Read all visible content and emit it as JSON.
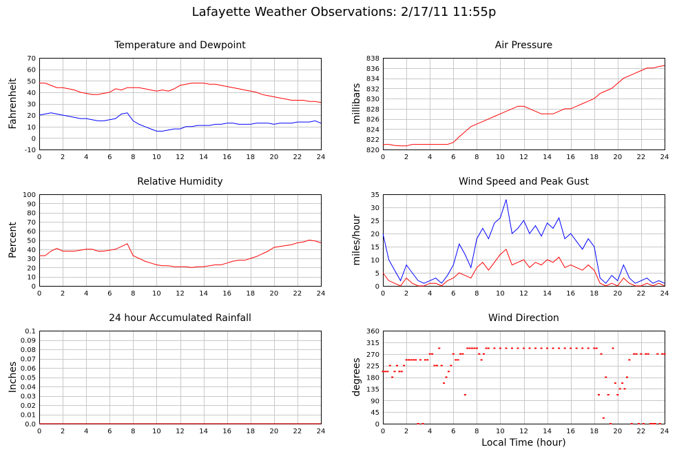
{
  "page": {
    "title": "Lafayette Weather Observations: 2/17/11 11:55p",
    "xlabel": "Local Time (hour)"
  },
  "chart_data": [
    {
      "id": "temp",
      "type": "line",
      "title": "Temperature and Dewpoint",
      "xlabel": "",
      "ylabel": "Fahrenheit",
      "xlim": [
        0,
        24
      ],
      "ylim": [
        -10,
        70
      ],
      "xticks": [
        0,
        2,
        4,
        6,
        8,
        10,
        12,
        14,
        16,
        18,
        20,
        22,
        24
      ],
      "yticks": [
        -10,
        0,
        10,
        20,
        30,
        40,
        50,
        60,
        70
      ],
      "grid": true,
      "x": [
        0,
        0.5,
        1,
        1.5,
        2,
        2.5,
        3,
        3.5,
        4,
        4.5,
        5,
        5.5,
        6,
        6.5,
        7,
        7.5,
        8,
        8.5,
        9,
        9.5,
        10,
        10.5,
        11,
        11.5,
        12,
        12.5,
        13,
        13.5,
        14,
        14.5,
        15,
        15.5,
        16,
        16.5,
        17,
        17.5,
        18,
        18.5,
        19,
        19.5,
        20,
        20.5,
        21,
        21.5,
        22,
        22.5,
        23,
        23.5,
        24
      ],
      "series": [
        {
          "color": "#ff0000",
          "values": [
            48,
            48,
            46,
            44,
            44,
            43,
            42,
            40,
            39,
            38,
            38,
            39,
            40,
            43,
            42,
            44,
            44,
            44,
            43,
            42,
            41,
            42,
            41,
            43,
            46,
            47,
            48,
            48,
            48,
            47,
            47,
            46,
            45,
            44,
            43,
            42,
            41,
            40,
            38,
            37,
            36,
            35,
            34,
            33,
            33,
            33,
            32,
            32,
            31
          ]
        },
        {
          "color": "#0000ff",
          "values": [
            20,
            21,
            22,
            21,
            20,
            19,
            18,
            17,
            17,
            16,
            15,
            15,
            16,
            17,
            21,
            22,
            15,
            12,
            10,
            8,
            6,
            6,
            7,
            8,
            8,
            10,
            10,
            11,
            11,
            11,
            12,
            12,
            13,
            13,
            12,
            12,
            12,
            13,
            13,
            13,
            12,
            13,
            13,
            13,
            14,
            14,
            14,
            15,
            13
          ]
        }
      ]
    },
    {
      "id": "pressure",
      "type": "line",
      "title": "Air Pressure",
      "xlabel": "",
      "ylabel": "millibars",
      "xlim": [
        0,
        24
      ],
      "ylim": [
        820,
        838
      ],
      "xticks": [
        0,
        2,
        4,
        6,
        8,
        10,
        12,
        14,
        16,
        18,
        20,
        22,
        24
      ],
      "yticks": [
        820,
        822,
        824,
        826,
        828,
        830,
        832,
        834,
        836,
        838
      ],
      "grid": true,
      "x": [
        0,
        0.5,
        1,
        1.5,
        2,
        2.5,
        3,
        3.5,
        4,
        4.5,
        5,
        5.5,
        6,
        6.5,
        7,
        7.5,
        8,
        8.5,
        9,
        9.5,
        10,
        10.5,
        11,
        11.5,
        12,
        12.5,
        13,
        13.5,
        14,
        14.5,
        15,
        15.5,
        16,
        16.5,
        17,
        17.5,
        18,
        18.5,
        19,
        19.5,
        20,
        20.5,
        21,
        21.5,
        22,
        22.5,
        23,
        23.5,
        24
      ],
      "series": [
        {
          "color": "#ff0000",
          "values": [
            821,
            821,
            820.8,
            820.7,
            820.7,
            821,
            821,
            821,
            821,
            821,
            821,
            821,
            821.4,
            822.5,
            823.5,
            824.5,
            825,
            825.5,
            826,
            826.5,
            827,
            827.5,
            828,
            828.5,
            828.5,
            828,
            827.5,
            827,
            827,
            827,
            827.5,
            828,
            828,
            828.5,
            829,
            829.5,
            830,
            831,
            831.5,
            832,
            833,
            834,
            834.5,
            835,
            835.5,
            836,
            836,
            836.3,
            836.5
          ]
        }
      ]
    },
    {
      "id": "humidity",
      "type": "line",
      "title": "Relative Humidity",
      "xlabel": "",
      "ylabel": "Percent",
      "xlim": [
        0,
        24
      ],
      "ylim": [
        0,
        100
      ],
      "xticks": [
        0,
        2,
        4,
        6,
        8,
        10,
        12,
        14,
        16,
        18,
        20,
        22,
        24
      ],
      "yticks": [
        0,
        10,
        20,
        30,
        40,
        50,
        60,
        70,
        80,
        90,
        100
      ],
      "grid": true,
      "x": [
        0,
        0.5,
        1,
        1.5,
        2,
        2.5,
        3,
        3.5,
        4,
        4.5,
        5,
        5.5,
        6,
        6.5,
        7,
        7.5,
        8,
        8.5,
        9,
        9.5,
        10,
        10.5,
        11,
        11.5,
        12,
        12.5,
        13,
        13.5,
        14,
        14.5,
        15,
        15.5,
        16,
        16.5,
        17,
        17.5,
        18,
        18.5,
        19,
        19.5,
        20,
        20.5,
        21,
        21.5,
        22,
        22.5,
        23,
        23.5,
        24
      ],
      "series": [
        {
          "color": "#ff0000",
          "values": [
            33,
            33,
            38,
            41,
            38,
            38,
            38,
            39,
            40,
            40,
            38,
            38,
            39,
            40,
            43,
            46,
            33,
            30,
            27,
            25,
            23,
            22,
            22,
            21,
            21,
            21,
            20,
            21,
            21,
            22,
            23,
            23,
            25,
            27,
            28,
            28,
            30,
            32,
            35,
            38,
            42,
            43,
            44,
            45,
            47,
            48,
            50,
            49,
            47
          ]
        }
      ]
    },
    {
      "id": "wind",
      "type": "line",
      "title": "Wind Speed and Peak Gust",
      "xlabel": "",
      "ylabel": "miles/hour",
      "xlim": [
        0,
        24
      ],
      "ylim": [
        0,
        35
      ],
      "xticks": [
        0,
        2,
        4,
        6,
        8,
        10,
        12,
        14,
        16,
        18,
        20,
        22,
        24
      ],
      "yticks": [
        0,
        5,
        10,
        15,
        20,
        25,
        30,
        35
      ],
      "grid": true,
      "x": [
        0,
        0.5,
        1,
        1.5,
        2,
        2.5,
        3,
        3.5,
        4,
        4.5,
        5,
        5.5,
        6,
        6.5,
        7,
        7.5,
        8,
        8.5,
        9,
        9.5,
        10,
        10.5,
        11,
        11.5,
        12,
        12.5,
        13,
        13.5,
        14,
        14.5,
        15,
        15.5,
        16,
        16.5,
        17,
        17.5,
        18,
        18.5,
        19,
        19.5,
        20,
        20.5,
        21,
        21.5,
        22,
        22.5,
        23,
        23.5,
        24
      ],
      "series": [
        {
          "color": "#0000ff",
          "values": [
            20,
            10,
            6,
            2,
            8,
            5,
            2,
            1,
            2,
            3,
            1,
            4,
            8,
            16,
            12,
            7,
            18,
            22,
            18,
            24,
            26,
            33,
            20,
            22,
            25,
            20,
            23,
            19,
            24,
            22,
            26,
            18,
            20,
            17,
            14,
            18,
            15,
            3,
            1,
            4,
            2,
            8,
            3,
            1,
            2,
            3,
            1,
            2,
            1
          ]
        },
        {
          "color": "#ff0000",
          "values": [
            5,
            2,
            1,
            0,
            3,
            1,
            0,
            0,
            1,
            1,
            0,
            2,
            3,
            5,
            4,
            3,
            7,
            9,
            6,
            9,
            12,
            14,
            8,
            9,
            10,
            7,
            9,
            8,
            10,
            9,
            11,
            7,
            8,
            7,
            6,
            8,
            6,
            1,
            0,
            1,
            0,
            3,
            1,
            0,
            0,
            1,
            0,
            1,
            0
          ]
        }
      ]
    },
    {
      "id": "rain",
      "type": "line",
      "title": "24 hour Accumulated Rainfall",
      "xlabel": "",
      "ylabel": "Inches",
      "xlim": [
        0,
        24
      ],
      "ylim": [
        0,
        0.1
      ],
      "xticks": [
        0,
        2,
        4,
        6,
        8,
        10,
        12,
        14,
        16,
        18,
        20,
        22,
        24
      ],
      "yticks": [
        0.0,
        0.01,
        0.02,
        0.03,
        0.04,
        0.05,
        0.06,
        0.07,
        0.08,
        0.09,
        0.1
      ],
      "yticklabels": [
        "0.0",
        "0.01",
        "0.02",
        "0.03",
        "0.04",
        "0.05",
        "0.06",
        "0.07",
        "0.08",
        "0.09",
        "0.1"
      ],
      "grid": true,
      "x": [
        0,
        24
      ],
      "series": [
        {
          "color": "#ff0000",
          "values": [
            0,
            0
          ]
        }
      ]
    },
    {
      "id": "direction",
      "type": "scatter",
      "title": "Wind Direction",
      "xlabel": "",
      "ylabel": "degrees",
      "xlim": [
        0,
        24
      ],
      "ylim": [
        0,
        360
      ],
      "xticks": [
        0,
        2,
        4,
        6,
        8,
        10,
        12,
        14,
        16,
        18,
        20,
        22,
        24
      ],
      "yticks": [
        0,
        45,
        90,
        135,
        180,
        225,
        270,
        315,
        360
      ],
      "grid": true,
      "series": [
        {
          "color": "#ff0000",
          "points": [
            [
              0,
              202
            ],
            [
              0.2,
              202
            ],
            [
              0.4,
              202
            ],
            [
              0.6,
              225
            ],
            [
              0.8,
              180
            ],
            [
              1,
              202
            ],
            [
              1.2,
              225
            ],
            [
              1.4,
              202
            ],
            [
              1.6,
              202
            ],
            [
              1.8,
              225
            ],
            [
              2,
              247
            ],
            [
              2.2,
              247
            ],
            [
              2.4,
              247
            ],
            [
              2.6,
              247
            ],
            [
              2.8,
              247
            ],
            [
              3,
              0
            ],
            [
              3.2,
              247
            ],
            [
              3.4,
              0
            ],
            [
              3.6,
              247
            ],
            [
              3.8,
              247
            ],
            [
              4,
              270
            ],
            [
              4.2,
              270
            ],
            [
              4.4,
              225
            ],
            [
              4.6,
              225
            ],
            [
              4.8,
              292
            ],
            [
              5,
              225
            ],
            [
              5.2,
              157
            ],
            [
              5.4,
              180
            ],
            [
              5.6,
              202
            ],
            [
              5.8,
              225
            ],
            [
              6,
              270
            ],
            [
              6.2,
              247
            ],
            [
              6.4,
              247
            ],
            [
              6.6,
              270
            ],
            [
              6.8,
              270
            ],
            [
              7,
              112
            ],
            [
              7.2,
              292
            ],
            [
              7.4,
              292
            ],
            [
              7.6,
              292
            ],
            [
              7.8,
              292
            ],
            [
              8,
              292
            ],
            [
              8.2,
              270
            ],
            [
              8.4,
              247
            ],
            [
              8.6,
              270
            ],
            [
              8.8,
              292
            ],
            [
              9,
              292
            ],
            [
              9.5,
              292
            ],
            [
              10,
              292
            ],
            [
              10.5,
              292
            ],
            [
              11,
              292
            ],
            [
              11.5,
              292
            ],
            [
              12,
              292
            ],
            [
              12.5,
              292
            ],
            [
              13,
              292
            ],
            [
              13.5,
              292
            ],
            [
              14,
              292
            ],
            [
              14.5,
              292
            ],
            [
              15,
              292
            ],
            [
              15.5,
              292
            ],
            [
              16,
              292
            ],
            [
              16.5,
              292
            ],
            [
              17,
              292
            ],
            [
              17.5,
              292
            ],
            [
              18,
              292
            ],
            [
              18.2,
              292
            ],
            [
              18.4,
              112
            ],
            [
              18.6,
              270
            ],
            [
              18.8,
              22
            ],
            [
              19,
              180
            ],
            [
              19.2,
              112
            ],
            [
              19.4,
              0
            ],
            [
              19.6,
              292
            ],
            [
              19.8,
              157
            ],
            [
              20,
              112
            ],
            [
              20.2,
              135
            ],
            [
              20.4,
              157
            ],
            [
              20.6,
              135
            ],
            [
              20.8,
              180
            ],
            [
              21,
              247
            ],
            [
              21.2,
              0
            ],
            [
              21.4,
              270
            ],
            [
              21.6,
              270
            ],
            [
              21.8,
              0
            ],
            [
              22,
              270
            ],
            [
              22.2,
              0
            ],
            [
              22.4,
              270
            ],
            [
              22.6,
              270
            ],
            [
              22.8,
              0
            ],
            [
              23,
              0
            ],
            [
              23.2,
              0
            ],
            [
              23.4,
              270
            ],
            [
              23.6,
              0
            ],
            [
              23.8,
              270
            ],
            [
              24,
              270
            ]
          ]
        }
      ]
    }
  ]
}
